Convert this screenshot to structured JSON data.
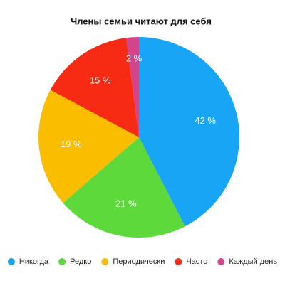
{
  "chart_data": {
    "type": "pie",
    "title": "Члены семьи читают для себя",
    "categories": [
      "Никогда",
      "Редко",
      "Периодически",
      "Часто",
      "Каждый день"
    ],
    "values": [
      42,
      21,
      19,
      15,
      2
    ],
    "value_labels": [
      "42 %",
      "21 %",
      "19 %",
      "15 %",
      "2 %"
    ],
    "colors": [
      "#18a5f5",
      "#5ed93b",
      "#fbbd00",
      "#f72a13",
      "#d2448c"
    ],
    "legend": "bottom"
  }
}
